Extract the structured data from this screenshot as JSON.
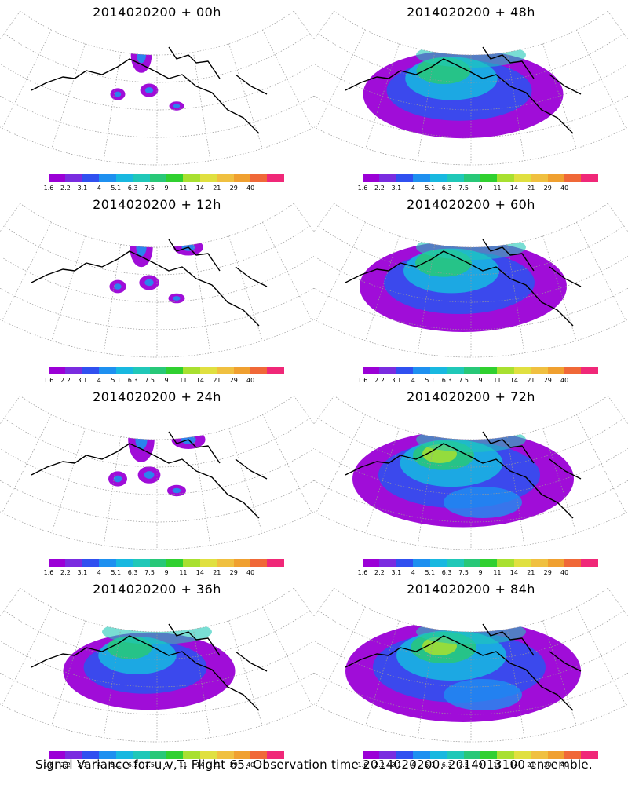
{
  "panels": [
    {
      "title": "2014020200 + 00h"
    },
    {
      "title": "2014020200 + 48h"
    },
    {
      "title": "2014020200 + 12h"
    },
    {
      "title": "2014020200 + 60h"
    },
    {
      "title": "2014020200 + 24h"
    },
    {
      "title": "2014020200 + 72h"
    },
    {
      "title": "2014020200 + 36h"
    },
    {
      "title": "2014020200 + 84h"
    }
  ],
  "colorbar": {
    "labels": [
      "1.6",
      "2.2",
      "3.1",
      "4",
      "5.1",
      "6.3",
      "7.5",
      "9",
      "11",
      "14",
      "21",
      "29",
      "40"
    ],
    "colors": [
      "#9b00d6",
      "#7a2ce0",
      "#3050f0",
      "#1e90f0",
      "#18b8e0",
      "#20c8b8",
      "#28c878",
      "#30d030",
      "#a8e030",
      "#e0e040",
      "#f0c040",
      "#f0a030",
      "#f06838",
      "#f02878"
    ]
  },
  "caption": "Signal Variance for u,v,T. Flight 65. Observation time 2014020200. 2014013100 ensemble."
}
